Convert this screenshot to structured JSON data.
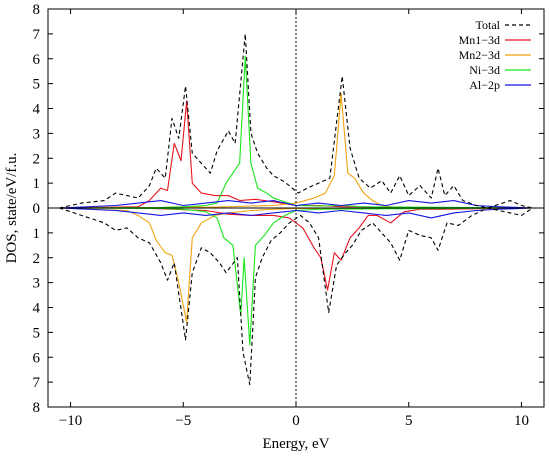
{
  "chart_data": {
    "type": "line",
    "xlabel": "Energy, eV",
    "ylabel": "DOS, state/eV/f.u.",
    "xlim": [
      -11,
      11
    ],
    "ylim": [
      -8,
      8
    ],
    "x_ticks": [
      -10,
      -5,
      0,
      5,
      10
    ],
    "x_tick_labels": [
      "−10",
      "−5",
      "0",
      "5",
      "10"
    ],
    "y_ticks": [
      -8,
      -7,
      -6,
      -5,
      -4,
      -3,
      -2,
      -1,
      0,
      1,
      2,
      3,
      4,
      5,
      6,
      7,
      8
    ],
    "y_tick_labels": [
      "8",
      "7",
      "6",
      "5",
      "4",
      "3",
      "2",
      "1",
      "0",
      "1",
      "2",
      "3",
      "4",
      "5",
      "6",
      "7",
      "8"
    ],
    "fermi_level": 0,
    "legend_position": "top-right",
    "series": [
      {
        "name": "Total",
        "color": "#000000",
        "dashed": true,
        "up": [
          [
            -10.5,
            0
          ],
          [
            -9.5,
            0.2
          ],
          [
            -8.5,
            0.3
          ],
          [
            -8,
            0.6
          ],
          [
            -7.5,
            0.5
          ],
          [
            -7,
            0.4
          ],
          [
            -6.5,
            0.9
          ],
          [
            -6.2,
            1.6
          ],
          [
            -5.8,
            1.2
          ],
          [
            -5.5,
            3.6
          ],
          [
            -5.2,
            2.8
          ],
          [
            -4.9,
            4.9
          ],
          [
            -4.6,
            2.2
          ],
          [
            -4.2,
            1.8
          ],
          [
            -3.8,
            1.4
          ],
          [
            -3.5,
            2.3
          ],
          [
            -3.0,
            3.1
          ],
          [
            -2.7,
            2.6
          ],
          [
            -2.25,
            7.0
          ],
          [
            -2.0,
            3.0
          ],
          [
            -1.7,
            2.2
          ],
          [
            -1.3,
            1.6
          ],
          [
            -1.0,
            1.3
          ],
          [
            -0.6,
            1.1
          ],
          [
            -0.3,
            0.9
          ],
          [
            0.1,
            0.6
          ],
          [
            0.5,
            0.8
          ],
          [
            1.0,
            1.0
          ],
          [
            1.5,
            1.2
          ],
          [
            2.05,
            5.3
          ],
          [
            2.4,
            2.4
          ],
          [
            2.8,
            1.2
          ],
          [
            3.3,
            0.8
          ],
          [
            3.8,
            1.1
          ],
          [
            4.2,
            0.6
          ],
          [
            4.6,
            1.3
          ],
          [
            5.0,
            0.5
          ],
          [
            5.5,
            0.9
          ],
          [
            6.0,
            0.4
          ],
          [
            6.3,
            1.6
          ],
          [
            6.6,
            0.5
          ],
          [
            7.0,
            0.9
          ],
          [
            7.4,
            0.3
          ],
          [
            8.0,
            0.1
          ],
          [
            8.5,
            0
          ],
          [
            9.5,
            0.3
          ],
          [
            10,
            0.1
          ],
          [
            10.5,
            0
          ]
        ],
        "down": [
          [
            -10.5,
            0
          ],
          [
            -9.5,
            -0.3
          ],
          [
            -8.5,
            -0.6
          ],
          [
            -8,
            -0.9
          ],
          [
            -7.5,
            -0.8
          ],
          [
            -7,
            -1.2
          ],
          [
            -6.5,
            -1.4
          ],
          [
            -6.0,
            -2.2
          ],
          [
            -5.7,
            -2.9
          ],
          [
            -5.4,
            -2.2
          ],
          [
            -4.9,
            -5.3
          ],
          [
            -4.6,
            -2.6
          ],
          [
            -4.2,
            -1.6
          ],
          [
            -3.8,
            -1.8
          ],
          [
            -3.4,
            -2.2
          ],
          [
            -3.1,
            -2.6
          ],
          [
            -2.6,
            -2.0
          ],
          [
            -2.35,
            -5.8
          ],
          [
            -2.05,
            -7.1
          ],
          [
            -1.8,
            -2.8
          ],
          [
            -1.5,
            -2.0
          ],
          [
            -1.1,
            -1.3
          ],
          [
            -0.7,
            -1.0
          ],
          [
            -0.3,
            -0.6
          ],
          [
            0.2,
            -0.3
          ],
          [
            0.6,
            -0.6
          ],
          [
            1.0,
            -1.2
          ],
          [
            1.45,
            -4.2
          ],
          [
            1.8,
            -2.3
          ],
          [
            2.2,
            -1.8
          ],
          [
            2.5,
            -1.5
          ],
          [
            2.9,
            -0.9
          ],
          [
            3.4,
            -0.6
          ],
          [
            3.8,
            -1.0
          ],
          [
            4.2,
            -1.4
          ],
          [
            4.6,
            -2.1
          ],
          [
            5.0,
            -0.9
          ],
          [
            5.5,
            -1.1
          ],
          [
            6.0,
            -1.2
          ],
          [
            6.3,
            -1.7
          ],
          [
            6.7,
            -0.6
          ],
          [
            7.2,
            -0.7
          ],
          [
            7.8,
            -0.3
          ],
          [
            8.5,
            0
          ],
          [
            9.5,
            -0.2
          ],
          [
            10,
            -0.3
          ],
          [
            10.5,
            0
          ]
        ]
      },
      {
        "name": "Mn1−3d",
        "color": "#e8141e",
        "dashed": false,
        "up": [
          [
            -10.5,
            0
          ],
          [
            -7.0,
            0.05
          ],
          [
            -6.5,
            0.3
          ],
          [
            -6.0,
            0.8
          ],
          [
            -5.7,
            0.7
          ],
          [
            -5.4,
            2.6
          ],
          [
            -5.1,
            1.9
          ],
          [
            -4.85,
            4.3
          ],
          [
            -4.6,
            1.0
          ],
          [
            -4.2,
            0.6
          ],
          [
            -3.6,
            0.5
          ],
          [
            -3.0,
            0.5
          ],
          [
            -2.5,
            0.3
          ],
          [
            -1.8,
            0.35
          ],
          [
            -1.0,
            0.25
          ],
          [
            0,
            0.1
          ],
          [
            1.0,
            0.1
          ],
          [
            2.0,
            0.05
          ],
          [
            3.0,
            0.05
          ],
          [
            4.0,
            0.02
          ],
          [
            6.0,
            0.02
          ],
          [
            7.0,
            0.02
          ],
          [
            10.5,
            0
          ]
        ],
        "down": [
          [
            -10.5,
            0
          ],
          [
            -7.0,
            0
          ],
          [
            -5.5,
            -0.05
          ],
          [
            -4.0,
            -0.1
          ],
          [
            -3.0,
            -0.25
          ],
          [
            -2.0,
            -0.3
          ],
          [
            -1.0,
            -0.3
          ],
          [
            -0.3,
            -0.4
          ],
          [
            0.3,
            -0.8
          ],
          [
            0.8,
            -1.6
          ],
          [
            1.1,
            -2.0
          ],
          [
            1.4,
            -3.3
          ],
          [
            1.7,
            -1.8
          ],
          [
            2.0,
            -2.1
          ],
          [
            2.4,
            -1.2
          ],
          [
            2.8,
            -0.8
          ],
          [
            3.2,
            -0.3
          ],
          [
            3.6,
            -0.3
          ],
          [
            4.2,
            -0.6
          ],
          [
            4.8,
            -0.15
          ],
          [
            5.5,
            -0.05
          ],
          [
            6.5,
            -0.05
          ],
          [
            10.5,
            0
          ]
        ]
      },
      {
        "name": "Mn2−3d",
        "color": "#f2a20f",
        "dashed": false,
        "up": [
          [
            -10.5,
            0
          ],
          [
            -6.0,
            0.02
          ],
          [
            -5.0,
            0.05
          ],
          [
            -4.0,
            0.03
          ],
          [
            -3.0,
            0.05
          ],
          [
            -2.0,
            0.08
          ],
          [
            -1.0,
            0.1
          ],
          [
            0,
            0.2
          ],
          [
            0.8,
            0.4
          ],
          [
            1.3,
            0.6
          ],
          [
            1.7,
            1.3
          ],
          [
            2.0,
            4.6
          ],
          [
            2.3,
            1.4
          ],
          [
            2.6,
            1.2
          ],
          [
            3.0,
            0.6
          ],
          [
            3.4,
            0.3
          ],
          [
            3.8,
            0.1
          ],
          [
            4.5,
            0.02
          ],
          [
            10.5,
            0
          ]
        ],
        "down": [
          [
            -10.5,
            0
          ],
          [
            -7.5,
            -0.1
          ],
          [
            -7.0,
            -0.3
          ],
          [
            -6.5,
            -0.6
          ],
          [
            -6.2,
            -1.3
          ],
          [
            -5.8,
            -1.8
          ],
          [
            -5.5,
            -1.9
          ],
          [
            -5.2,
            -3.0
          ],
          [
            -4.85,
            -4.6
          ],
          [
            -4.6,
            -1.2
          ],
          [
            -4.2,
            -0.6
          ],
          [
            -3.6,
            -0.3
          ],
          [
            -3.0,
            -0.2
          ],
          [
            -2.0,
            -0.1
          ],
          [
            -1.0,
            -0.05
          ],
          [
            0,
            -0.02
          ],
          [
            10.5,
            0
          ]
        ]
      },
      {
        "name": "Ni−3d",
        "color": "#19e619",
        "dashed": false,
        "up": [
          [
            -10.5,
            0
          ],
          [
            -6.0,
            0.02
          ],
          [
            -5.0,
            0.05
          ],
          [
            -4.0,
            0.1
          ],
          [
            -3.5,
            0.2
          ],
          [
            -3.1,
            1.0
          ],
          [
            -2.8,
            1.4
          ],
          [
            -2.5,
            1.8
          ],
          [
            -2.25,
            6.1
          ],
          [
            -2.0,
            1.8
          ],
          [
            -1.7,
            0.8
          ],
          [
            -1.3,
            0.6
          ],
          [
            -1.0,
            0.4
          ],
          [
            -0.5,
            0.25
          ],
          [
            0,
            0.1
          ],
          [
            1.0,
            0.08
          ],
          [
            2.0,
            0.1
          ],
          [
            3.0,
            0.05
          ],
          [
            10.5,
            0
          ]
        ],
        "down": [
          [
            -10.5,
            0
          ],
          [
            -6.0,
            -0.02
          ],
          [
            -5.0,
            -0.05
          ],
          [
            -4.0,
            -0.15
          ],
          [
            -3.5,
            -0.4
          ],
          [
            -3.2,
            -1.2
          ],
          [
            -2.8,
            -1.5
          ],
          [
            -2.45,
            -4.3
          ],
          [
            -2.3,
            -2.0
          ],
          [
            -2.05,
            -5.5
          ],
          [
            -1.8,
            -1.5
          ],
          [
            -1.4,
            -1.1
          ],
          [
            -1.0,
            -0.6
          ],
          [
            -0.5,
            -0.3
          ],
          [
            0,
            -0.1
          ],
          [
            1.0,
            -0.05
          ],
          [
            10.5,
            0
          ]
        ]
      },
      {
        "name": "Al−2p",
        "color": "#1414e6",
        "dashed": false,
        "up": [
          [
            -10.5,
            0
          ],
          [
            -8.0,
            0.1
          ],
          [
            -7.0,
            0.2
          ],
          [
            -6.0,
            0.3
          ],
          [
            -5.0,
            0.1
          ],
          [
            -4.0,
            0.2
          ],
          [
            -3.0,
            0.3
          ],
          [
            -2.0,
            0.2
          ],
          [
            -1.0,
            0.3
          ],
          [
            0,
            0.1
          ],
          [
            1.0,
            0.2
          ],
          [
            2.0,
            0.1
          ],
          [
            3.0,
            0.2
          ],
          [
            4.0,
            0.1
          ],
          [
            5.0,
            0.3
          ],
          [
            6.0,
            0.2
          ],
          [
            7.0,
            0.3
          ],
          [
            8.0,
            0.1
          ],
          [
            9.0,
            0.05
          ],
          [
            10.5,
            0
          ]
        ],
        "down": [
          [
            -10.5,
            0
          ],
          [
            -8.0,
            -0.1
          ],
          [
            -7.0,
            -0.2
          ],
          [
            -6.0,
            -0.3
          ],
          [
            -5.0,
            -0.2
          ],
          [
            -4.0,
            -0.3
          ],
          [
            -3.0,
            -0.2
          ],
          [
            -2.0,
            -0.3
          ],
          [
            -1.0,
            -0.2
          ],
          [
            0,
            -0.1
          ],
          [
            1.0,
            -0.2
          ],
          [
            2.0,
            -0.1
          ],
          [
            3.0,
            -0.2
          ],
          [
            4.0,
            -0.3
          ],
          [
            5.0,
            -0.2
          ],
          [
            6.0,
            -0.4
          ],
          [
            7.0,
            -0.2
          ],
          [
            8.0,
            -0.1
          ],
          [
            9.0,
            -0.05
          ],
          [
            10.5,
            0
          ]
        ]
      }
    ]
  }
}
